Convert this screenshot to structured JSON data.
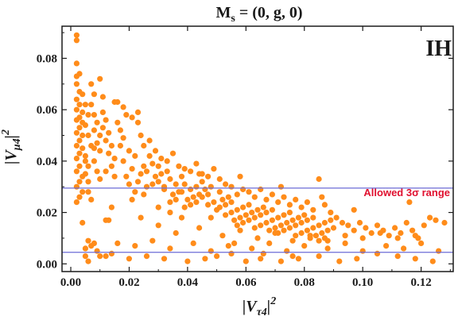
{
  "chart_data": {
    "type": "scatter",
    "title": "M_s = (0, g, 0)",
    "xlabel": "|V_τ4|^2",
    "ylabel": "|V_μ4|^2",
    "xlim": [
      -0.003,
      0.131
    ],
    "ylim": [
      -0.003,
      0.0925
    ],
    "x_ticks": [
      "0.00",
      "0.02",
      "0.04",
      "0.06",
      "0.08",
      "0.10",
      "0.12"
    ],
    "y_ticks": [
      "0.00",
      "0.02",
      "0.04",
      "0.06",
      "0.08"
    ],
    "annotations": {
      "tag": "IH",
      "band_label": "Allowed 3σ range"
    },
    "allowed_range": {
      "lower": 0.0045,
      "upper": 0.0295
    },
    "colors": {
      "points": "#ff8c1a",
      "band_lines": "#6b6bd6",
      "band_label": "#e0102f"
    },
    "points": [
      [
        0.002,
        0.089
      ],
      [
        0.002,
        0.087
      ],
      [
        0.002,
        0.078
      ],
      [
        0.003,
        0.074
      ],
      [
        0.002,
        0.073
      ],
      [
        0.002,
        0.07
      ],
      [
        0.003,
        0.067
      ],
      [
        0.004,
        0.066
      ],
      [
        0.002,
        0.064
      ],
      [
        0.003,
        0.062
      ],
      [
        0.002,
        0.06
      ],
      [
        0.004,
        0.059
      ],
      [
        0.003,
        0.057
      ],
      [
        0.002,
        0.056
      ],
      [
        0.004,
        0.055
      ],
      [
        0.003,
        0.053
      ],
      [
        0.002,
        0.051
      ],
      [
        0.004,
        0.05
      ],
      [
        0.003,
        0.048
      ],
      [
        0.002,
        0.046
      ],
      [
        0.004,
        0.045
      ],
      [
        0.003,
        0.043
      ],
      [
        0.002,
        0.041
      ],
      [
        0.005,
        0.04
      ],
      [
        0.003,
        0.038
      ],
      [
        0.002,
        0.036
      ],
      [
        0.004,
        0.034
      ],
      [
        0.003,
        0.032
      ],
      [
        0.002,
        0.03
      ],
      [
        0.004,
        0.028
      ],
      [
        0.003,
        0.026
      ],
      [
        0.002,
        0.024
      ],
      [
        0.005,
        0.062
      ],
      [
        0.006,
        0.058
      ],
      [
        0.005,
        0.054
      ],
      [
        0.006,
        0.05
      ],
      [
        0.007,
        0.046
      ],
      [
        0.005,
        0.042
      ],
      [
        0.006,
        0.038
      ],
      [
        0.005,
        0.035
      ],
      [
        0.006,
        0.032
      ],
      [
        0.007,
        0.07
      ],
      [
        0.008,
        0.066
      ],
      [
        0.007,
        0.062
      ],
      [
        0.008,
        0.058
      ],
      [
        0.009,
        0.055
      ],
      [
        0.008,
        0.052
      ],
      [
        0.01,
        0.05
      ],
      [
        0.009,
        0.047
      ],
      [
        0.01,
        0.044
      ],
      [
        0.008,
        0.04
      ],
      [
        0.009,
        0.036
      ],
      [
        0.01,
        0.033
      ],
      [
        0.011,
        0.059
      ],
      [
        0.012,
        0.056
      ],
      [
        0.011,
        0.053
      ],
      [
        0.013,
        0.051
      ],
      [
        0.012,
        0.048
      ],
      [
        0.014,
        0.046
      ],
      [
        0.013,
        0.043
      ],
      [
        0.015,
        0.041
      ],
      [
        0.014,
        0.038
      ],
      [
        0.012,
        0.036
      ],
      [
        0.015,
        0.034
      ],
      [
        0.01,
        0.072
      ],
      [
        0.008,
        0.045
      ],
      [
        0.006,
        0.028
      ],
      [
        0.007,
        0.025
      ],
      [
        0.005,
        0.006
      ],
      [
        0.007,
        0.007
      ],
      [
        0.008,
        0.008
      ],
      [
        0.006,
        0.009
      ],
      [
        0.009,
        0.005
      ],
      [
        0.012,
        0.003
      ],
      [
        0.013,
        0.017
      ],
      [
        0.014,
        0.022
      ],
      [
        0.016,
        0.055
      ],
      [
        0.017,
        0.052
      ],
      [
        0.018,
        0.049
      ],
      [
        0.017,
        0.046
      ],
      [
        0.019,
        0.058
      ],
      [
        0.02,
        0.044
      ],
      [
        0.018,
        0.04
      ],
      [
        0.021,
        0.037
      ],
      [
        0.019,
        0.034
      ],
      [
        0.02,
        0.031
      ],
      [
        0.022,
        0.028
      ],
      [
        0.021,
        0.025
      ],
      [
        0.023,
        0.055
      ],
      [
        0.024,
        0.05
      ],
      [
        0.022,
        0.042
      ],
      [
        0.025,
        0.038
      ],
      [
        0.024,
        0.035
      ],
      [
        0.023,
        0.032
      ],
      [
        0.026,
        0.03
      ],
      [
        0.025,
        0.027
      ],
      [
        0.027,
        0.042
      ],
      [
        0.028,
        0.039
      ],
      [
        0.026,
        0.036
      ],
      [
        0.029,
        0.034
      ],
      [
        0.028,
        0.031
      ],
      [
        0.03,
        0.038
      ],
      [
        0.031,
        0.035
      ],
      [
        0.03,
        0.032
      ],
      [
        0.032,
        0.029
      ],
      [
        0.033,
        0.036
      ],
      [
        0.034,
        0.033
      ],
      [
        0.032,
        0.03
      ],
      [
        0.035,
        0.027
      ],
      [
        0.034,
        0.024
      ],
      [
        0.036,
        0.031
      ],
      [
        0.037,
        0.028
      ],
      [
        0.036,
        0.025
      ],
      [
        0.038,
        0.034
      ],
      [
        0.039,
        0.031
      ],
      [
        0.038,
        0.028
      ],
      [
        0.04,
        0.025
      ],
      [
        0.039,
        0.022
      ],
      [
        0.041,
        0.029
      ],
      [
        0.042,
        0.026
      ],
      [
        0.041,
        0.023
      ],
      [
        0.043,
        0.03
      ],
      [
        0.044,
        0.027
      ],
      [
        0.043,
        0.024
      ],
      [
        0.045,
        0.032
      ],
      [
        0.046,
        0.029
      ],
      [
        0.045,
        0.026
      ],
      [
        0.047,
        0.023
      ],
      [
        0.048,
        0.03
      ],
      [
        0.047,
        0.027
      ],
      [
        0.049,
        0.024
      ],
      [
        0.05,
        0.021
      ],
      [
        0.048,
        0.018
      ],
      [
        0.051,
        0.028
      ],
      [
        0.052,
        0.025
      ],
      [
        0.051,
        0.022
      ],
      [
        0.053,
        0.019
      ],
      [
        0.054,
        0.026
      ],
      [
        0.053,
        0.023
      ],
      [
        0.055,
        0.02
      ],
      [
        0.056,
        0.017
      ],
      [
        0.055,
        0.024
      ],
      [
        0.057,
        0.021
      ],
      [
        0.058,
        0.018
      ],
      [
        0.057,
        0.015
      ],
      [
        0.059,
        0.022
      ],
      [
        0.06,
        0.019
      ],
      [
        0.059,
        0.016
      ],
      [
        0.061,
        0.023
      ],
      [
        0.062,
        0.02
      ],
      [
        0.061,
        0.017
      ],
      [
        0.063,
        0.014
      ],
      [
        0.064,
        0.021
      ],
      [
        0.063,
        0.018
      ],
      [
        0.065,
        0.015
      ],
      [
        0.066,
        0.022
      ],
      [
        0.065,
        0.019
      ],
      [
        0.067,
        0.016
      ],
      [
        0.068,
        0.013
      ],
      [
        0.067,
        0.02
      ],
      [
        0.069,
        0.017
      ],
      [
        0.07,
        0.014
      ],
      [
        0.069,
        0.021
      ],
      [
        0.071,
        0.018
      ],
      [
        0.072,
        0.015
      ],
      [
        0.071,
        0.012
      ],
      [
        0.073,
        0.019
      ],
      [
        0.074,
        0.016
      ],
      [
        0.073,
        0.013
      ],
      [
        0.075,
        0.02
      ],
      [
        0.076,
        0.017
      ],
      [
        0.075,
        0.014
      ],
      [
        0.077,
        0.011
      ],
      [
        0.078,
        0.018
      ],
      [
        0.077,
        0.015
      ],
      [
        0.079,
        0.012
      ],
      [
        0.08,
        0.019
      ],
      [
        0.079,
        0.016
      ],
      [
        0.081,
        0.013
      ],
      [
        0.082,
        0.01
      ],
      [
        0.081,
        0.017
      ],
      [
        0.083,
        0.014
      ],
      [
        0.084,
        0.011
      ],
      [
        0.083,
        0.018
      ],
      [
        0.085,
        0.015
      ],
      [
        0.086,
        0.012
      ],
      [
        0.085,
        0.009
      ],
      [
        0.087,
        0.016
      ],
      [
        0.088,
        0.013
      ],
      [
        0.087,
        0.01
      ],
      [
        0.089,
        0.017
      ],
      [
        0.09,
        0.014
      ],
      [
        0.016,
        0.063
      ],
      [
        0.018,
        0.061
      ],
      [
        0.021,
        0.057
      ],
      [
        0.023,
        0.059
      ],
      [
        0.025,
        0.046
      ],
      [
        0.027,
        0.048
      ],
      [
        0.029,
        0.044
      ],
      [
        0.031,
        0.041
      ],
      [
        0.033,
        0.04
      ],
      [
        0.035,
        0.043
      ],
      [
        0.037,
        0.038
      ],
      [
        0.039,
        0.037
      ],
      [
        0.041,
        0.036
      ],
      [
        0.043,
        0.039
      ],
      [
        0.045,
        0.035
      ],
      [
        0.047,
        0.034
      ],
      [
        0.049,
        0.037
      ],
      [
        0.051,
        0.033
      ],
      [
        0.053,
        0.031
      ],
      [
        0.055,
        0.03
      ],
      [
        0.057,
        0.027
      ],
      [
        0.059,
        0.029
      ],
      [
        0.061,
        0.028
      ],
      [
        0.063,
        0.026
      ],
      [
        0.065,
        0.029
      ],
      [
        0.067,
        0.025
      ],
      [
        0.069,
        0.027
      ],
      [
        0.071,
        0.024
      ],
      [
        0.073,
        0.026
      ],
      [
        0.075,
        0.023
      ],
      [
        0.077,
        0.025
      ],
      [
        0.079,
        0.022
      ],
      [
        0.081,
        0.024
      ],
      [
        0.083,
        0.021
      ],
      [
        0.085,
        0.033
      ],
      [
        0.087,
        0.023
      ],
      [
        0.089,
        0.02
      ],
      [
        0.091,
        0.018
      ],
      [
        0.093,
        0.016
      ],
      [
        0.095,
        0.015
      ],
      [
        0.097,
        0.013
      ],
      [
        0.099,
        0.016
      ],
      [
        0.101,
        0.014
      ],
      [
        0.103,
        0.012
      ],
      [
        0.105,
        0.015
      ],
      [
        0.107,
        0.013
      ],
      [
        0.109,
        0.011
      ],
      [
        0.111,
        0.014
      ],
      [
        0.113,
        0.012
      ],
      [
        0.115,
        0.016
      ],
      [
        0.117,
        0.013
      ],
      [
        0.119,
        0.01
      ],
      [
        0.121,
        0.015
      ],
      [
        0.123,
        0.018
      ],
      [
        0.125,
        0.017
      ],
      [
        0.128,
        0.016
      ],
      [
        0.01,
        0.003
      ],
      [
        0.014,
        0.004
      ],
      [
        0.02,
        0.002
      ],
      [
        0.026,
        0.003
      ],
      [
        0.032,
        0.002
      ],
      [
        0.04,
        0.001
      ],
      [
        0.046,
        0.002
      ],
      [
        0.05,
        0.003
      ],
      [
        0.055,
        0.004
      ],
      [
        0.06,
        0.001
      ],
      [
        0.065,
        0.002
      ],
      [
        0.072,
        0.001
      ],
      [
        0.078,
        0.002
      ],
      [
        0.085,
        0.003
      ],
      [
        0.092,
        0.001
      ],
      [
        0.098,
        0.002
      ],
      [
        0.105,
        0.004
      ],
      [
        0.112,
        0.003
      ],
      [
        0.118,
        0.002
      ],
      [
        0.124,
        0.001
      ],
      [
        0.016,
        0.008
      ],
      [
        0.022,
        0.007
      ],
      [
        0.028,
        0.009
      ],
      [
        0.034,
        0.006
      ],
      [
        0.042,
        0.008
      ],
      [
        0.048,
        0.005
      ],
      [
        0.054,
        0.007
      ],
      [
        0.062,
        0.006
      ],
      [
        0.068,
        0.008
      ],
      [
        0.074,
        0.005
      ],
      [
        0.08,
        0.007
      ],
      [
        0.088,
        0.006
      ],
      [
        0.094,
        0.008
      ],
      [
        0.1,
        0.005
      ],
      [
        0.108,
        0.007
      ],
      [
        0.114,
        0.006
      ],
      [
        0.12,
        0.008
      ],
      [
        0.126,
        0.005
      ],
      [
        0.024,
        0.018
      ],
      [
        0.03,
        0.015
      ],
      [
        0.036,
        0.012
      ],
      [
        0.044,
        0.014
      ],
      [
        0.052,
        0.011
      ],
      [
        0.058,
        0.013
      ],
      [
        0.064,
        0.01
      ],
      [
        0.07,
        0.012
      ],
      [
        0.076,
        0.009
      ],
      [
        0.082,
        0.011
      ],
      [
        0.088,
        0.009
      ],
      [
        0.094,
        0.011
      ],
      [
        0.1,
        0.01
      ],
      [
        0.106,
        0.012
      ],
      [
        0.112,
        0.01
      ],
      [
        0.118,
        0.011
      ],
      [
        0.116,
        0.024
      ],
      [
        0.011,
        0.065
      ],
      [
        0.015,
        0.063
      ],
      [
        0.044,
        0.035
      ],
      [
        0.058,
        0.034
      ],
      [
        0.072,
        0.03
      ],
      [
        0.086,
        0.026
      ],
      [
        0.097,
        0.021
      ],
      [
        0.012,
        0.017
      ],
      [
        0.004,
        0.016
      ],
      [
        0.005,
        0.003
      ],
      [
        0.006,
        0.001
      ],
      [
        0.03,
        0.022
      ],
      [
        0.034,
        0.02
      ],
      [
        0.038,
        0.018
      ],
      [
        0.056,
        0.008
      ],
      [
        0.066,
        0.004
      ],
      [
        0.076,
        0.003
      ]
    ]
  }
}
